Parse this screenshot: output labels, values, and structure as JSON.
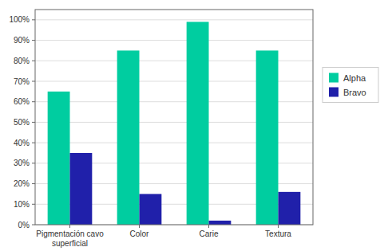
{
  "chart_data": {
    "type": "bar",
    "categories": [
      "Pigmentación cavo\nsuperficial",
      "Color",
      "Carie",
      "Textura"
    ],
    "series": [
      {
        "name": "Alpha",
        "color": "#00CDA0",
        "values": [
          65,
          85,
          99,
          85
        ]
      },
      {
        "name": "Bravo",
        "color": "#2020AA",
        "values": [
          35,
          15,
          2,
          16
        ]
      }
    ],
    "ylim": [
      0,
      105
    ],
    "yticks": [
      {
        "value": 0,
        "label": "0%"
      },
      {
        "value": 10,
        "label": "10%"
      },
      {
        "value": 20,
        "label": "20%"
      },
      {
        "value": 30,
        "label": "30%"
      },
      {
        "value": 40,
        "label": "40%"
      },
      {
        "value": 50,
        "label": "50%"
      },
      {
        "value": 60,
        "label": "60%"
      },
      {
        "value": 70,
        "label": "70%"
      },
      {
        "value": 80,
        "label": "80%"
      },
      {
        "value": 90,
        "label": "90%"
      },
      {
        "value": 100,
        "label": "100%"
      }
    ],
    "grid": true,
    "legend": "right"
  }
}
